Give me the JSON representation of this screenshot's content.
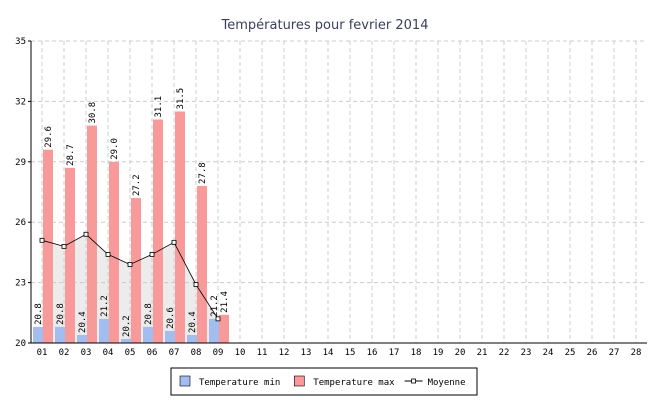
{
  "chart_data": {
    "type": "bar",
    "title": "Températures pour fevrier 2014",
    "categories": [
      "01",
      "02",
      "03",
      "04",
      "05",
      "06",
      "07",
      "08",
      "09",
      "10",
      "11",
      "12",
      "13",
      "14",
      "15",
      "16",
      "17",
      "18",
      "19",
      "20",
      "21",
      "22",
      "23",
      "24",
      "25",
      "26",
      "27",
      "28"
    ],
    "series": [
      {
        "name": "Temperature min",
        "color": "#a3bdef",
        "type": "bar",
        "values": [
          20.8,
          20.8,
          20.4,
          21.2,
          20.2,
          20.8,
          20.6,
          20.4,
          21.2,
          null,
          null,
          null,
          null,
          null,
          null,
          null,
          null,
          null,
          null,
          null,
          null,
          null,
          null,
          null,
          null,
          null,
          null,
          null
        ],
        "value_labels": [
          "20.8",
          "20.8",
          "20.4",
          "21.2",
          "20.2",
          "20.8",
          "20.6",
          "20.4",
          "21.2",
          null,
          null,
          null,
          null,
          null,
          null,
          null,
          null,
          null,
          null,
          null,
          null,
          null,
          null,
          null,
          null,
          null,
          null,
          null
        ]
      },
      {
        "name": "Temperature max",
        "color": "#f89a9a",
        "type": "bar",
        "values": [
          29.6,
          28.7,
          30.8,
          29.0,
          27.2,
          31.1,
          31.5,
          27.8,
          21.4,
          null,
          null,
          null,
          null,
          null,
          null,
          null,
          null,
          null,
          null,
          null,
          null,
          null,
          null,
          null,
          null,
          null,
          null,
          null
        ],
        "value_labels": [
          "29.6",
          "28.7",
          "30.8",
          "29.0",
          "27.2",
          "31.1",
          "31.5",
          "27.8",
          "21.4",
          null,
          null,
          null,
          null,
          null,
          null,
          null,
          null,
          null,
          null,
          null,
          null,
          null,
          null,
          null,
          null,
          null,
          null,
          null
        ]
      },
      {
        "name": "Moyenne",
        "color": "#000000",
        "type": "line",
        "values": [
          25.1,
          24.8,
          25.4,
          24.4,
          23.9,
          24.4,
          25.0,
          22.9,
          21.2,
          null,
          null,
          null,
          null,
          null,
          null,
          null,
          null,
          null,
          null,
          null,
          null,
          null,
          null,
          null,
          null,
          null,
          null,
          null
        ]
      }
    ],
    "ylim": [
      20,
      35
    ],
    "yticks": [
      20,
      23,
      26,
      29,
      32,
      35
    ],
    "grid": true,
    "legend": "bottom"
  }
}
